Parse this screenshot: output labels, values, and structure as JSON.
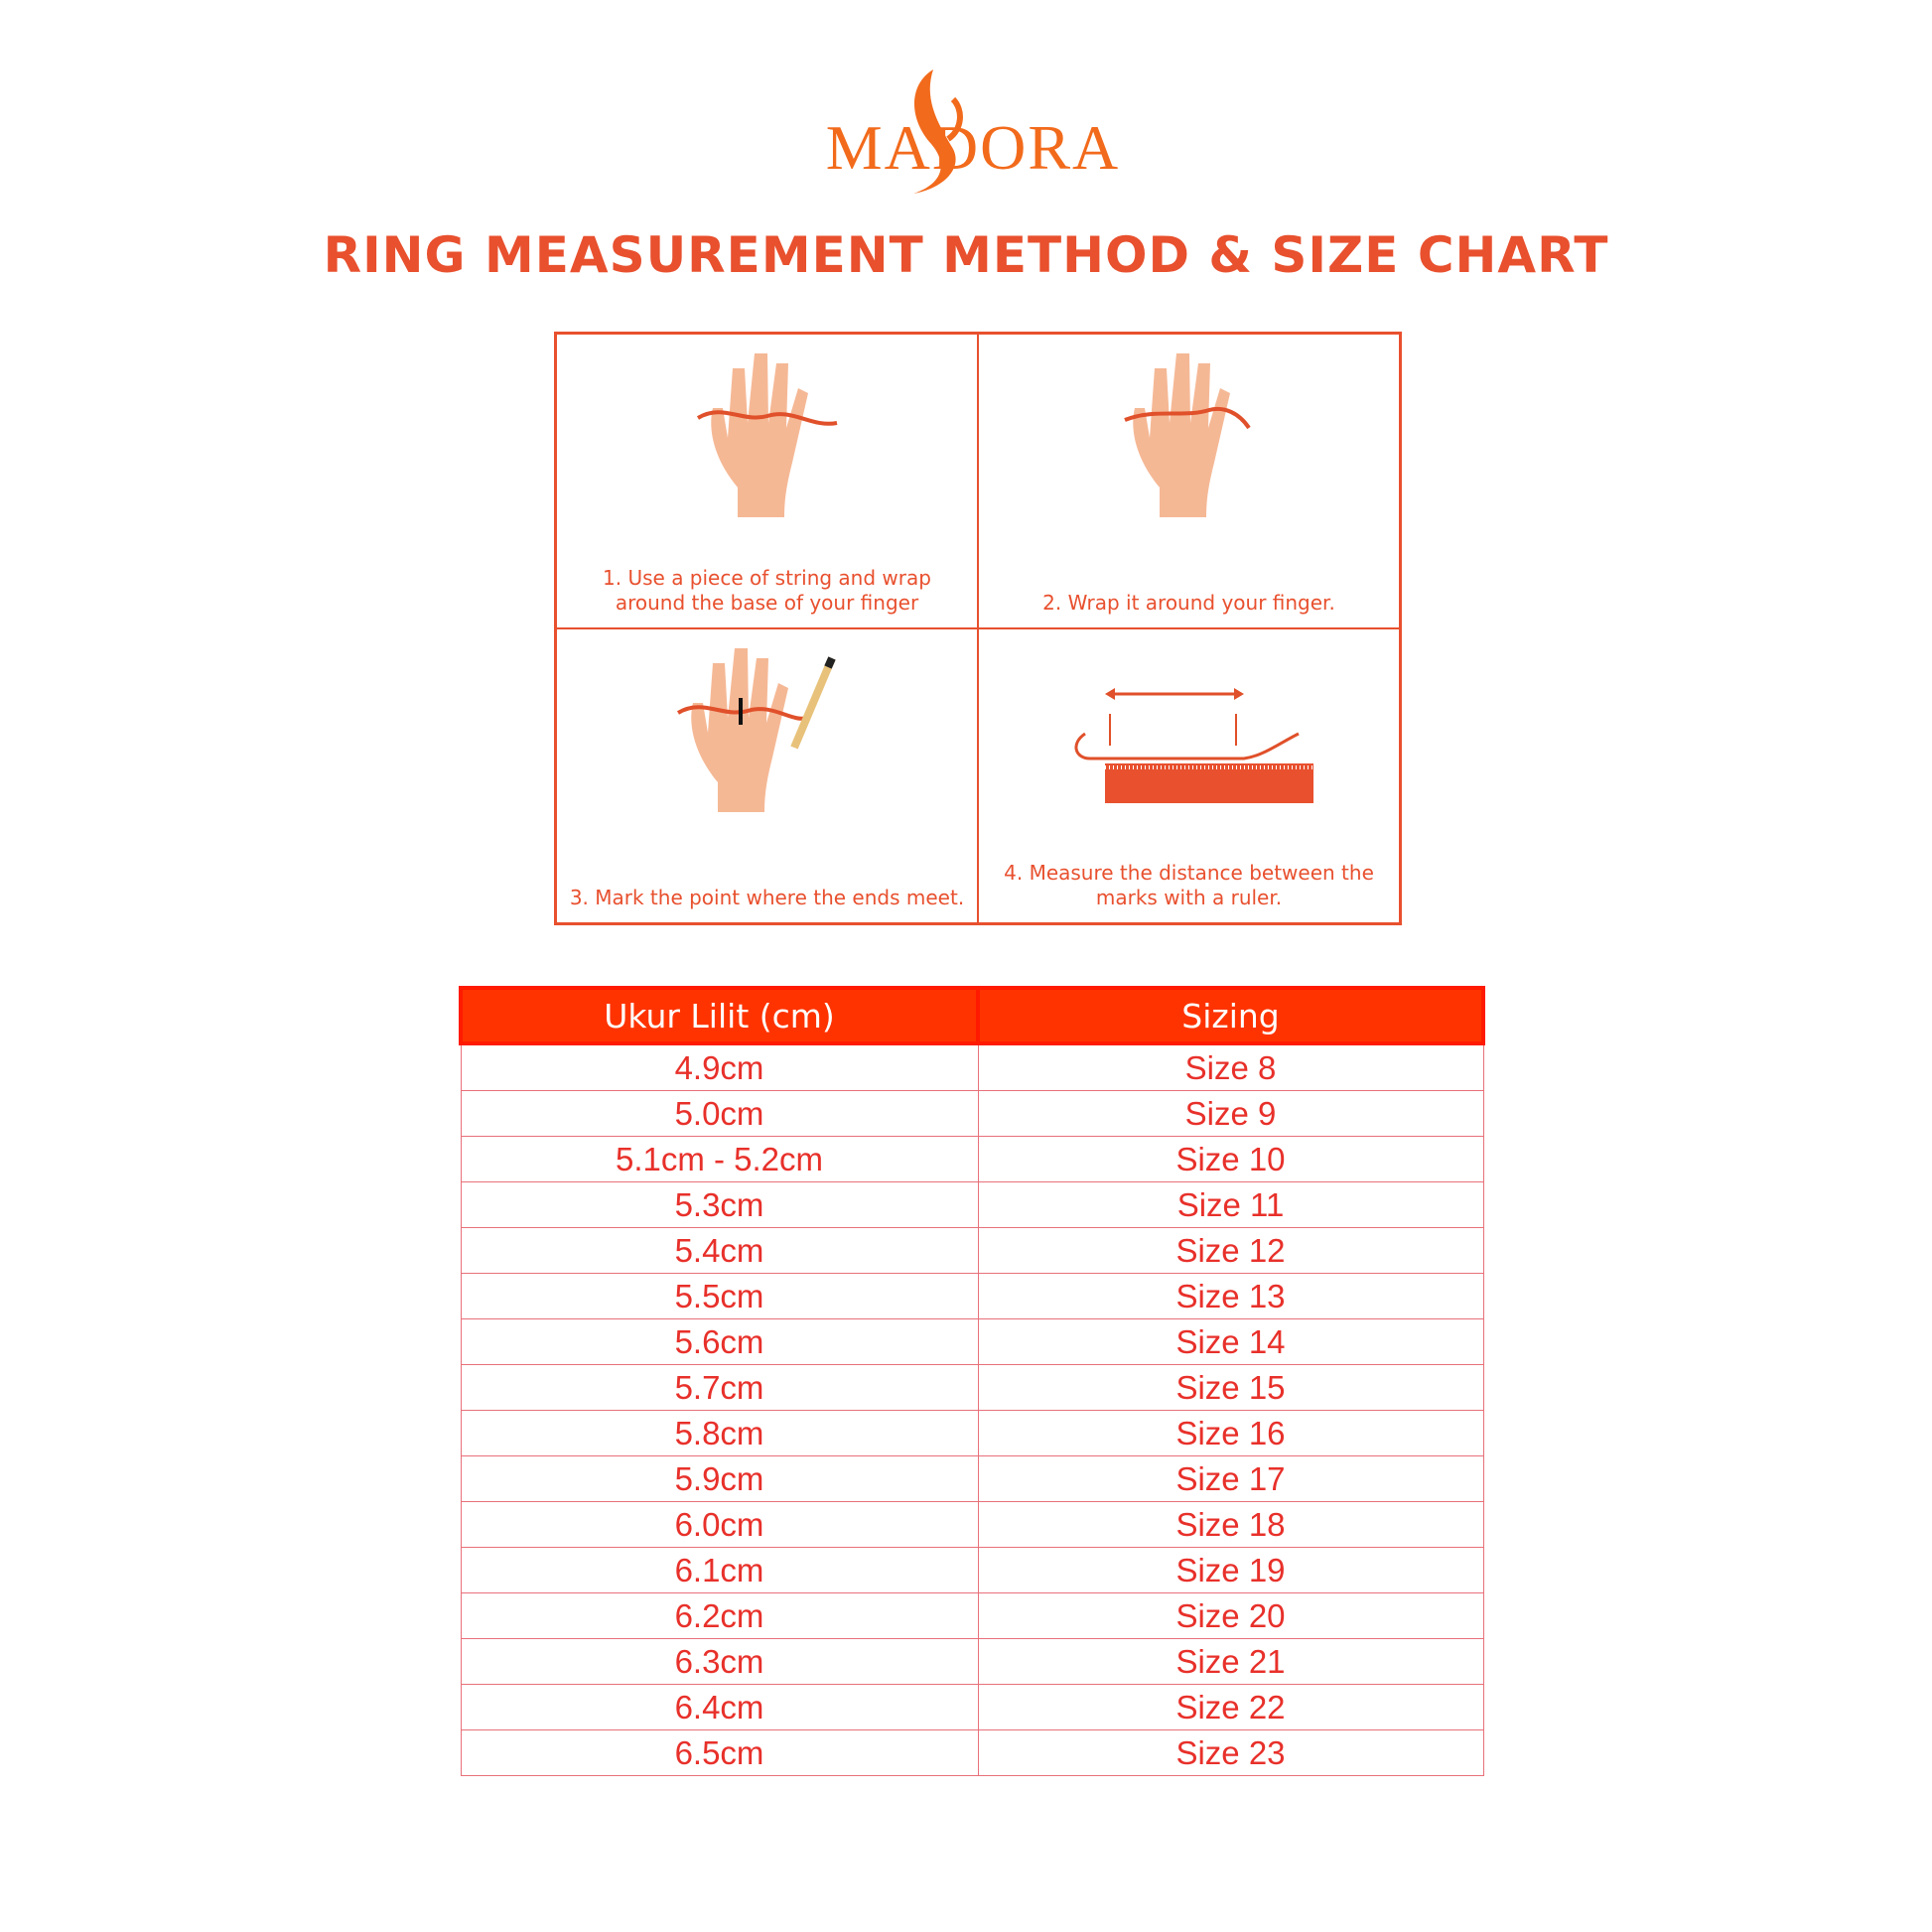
{
  "brand": {
    "logo_text": "MADORA",
    "color": "#f26a1b"
  },
  "title": "RING MEASUREMENT METHOD  & SIZE CHART",
  "accent_color": "#e8502e",
  "steps": [
    {
      "icon": "hand-string-icon",
      "text": "1. Use a piece of string and wrap around the base of your finger"
    },
    {
      "icon": "hand-wrap-icon",
      "text": "2. Wrap it around your finger."
    },
    {
      "icon": "hand-pencil-mark-icon",
      "text": "3. Mark the point where the ends meet."
    },
    {
      "icon": "ruler-measure-icon",
      "text": "4. Measure the distance between the marks with a ruler."
    }
  ],
  "table": {
    "headers": [
      "Ukur Lilit (cm)",
      "Sizing"
    ],
    "rows": [
      [
        "4.9cm",
        "Size 8"
      ],
      [
        "5.0cm",
        "Size 9"
      ],
      [
        "5.1cm - 5.2cm",
        "Size 10"
      ],
      [
        "5.3cm",
        "Size 11"
      ],
      [
        "5.4cm",
        "Size 12"
      ],
      [
        "5.5cm",
        "Size 13"
      ],
      [
        "5.6cm",
        "Size 14"
      ],
      [
        "5.7cm",
        "Size 15"
      ],
      [
        "5.8cm",
        "Size 16"
      ],
      [
        "5.9cm",
        "Size 17"
      ],
      [
        "6.0cm",
        "Size 18"
      ],
      [
        "6.1cm",
        "Size 19"
      ],
      [
        "6.2cm",
        "Size 20"
      ],
      [
        "6.3cm",
        "Size 21"
      ],
      [
        "6.4cm",
        "Size 22"
      ],
      [
        "6.5cm",
        "Size 23"
      ]
    ]
  }
}
